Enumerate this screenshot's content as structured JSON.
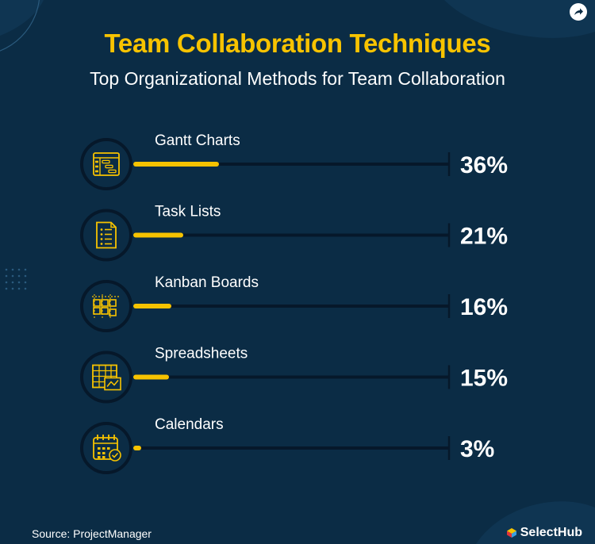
{
  "title": "Team Collaboration Techniques",
  "subtitle": "Top Organizational Methods for Team Collaboration",
  "source": "Source: ProjectManager",
  "brand": "SelectHub",
  "colors": {
    "background": "#0b2c45",
    "accent": "#f7c300",
    "track": "#06182a",
    "text": "#ffffff"
  },
  "icons": [
    "gantt-chart-icon",
    "task-list-icon",
    "kanban-board-icon",
    "spreadsheet-icon",
    "calendar-icon"
  ],
  "chart_data": {
    "type": "bar",
    "orientation": "horizontal",
    "categories": [
      "Gantt Charts",
      "Task Lists",
      "Kanban Boards",
      "Spreadsheets",
      "Calendars"
    ],
    "values": [
      36,
      21,
      16,
      15,
      3
    ],
    "value_labels": [
      "36%",
      "21%",
      "16%",
      "15%",
      "3%"
    ],
    "xlim": [
      0,
      100
    ],
    "grid": false,
    "legend": "none"
  }
}
